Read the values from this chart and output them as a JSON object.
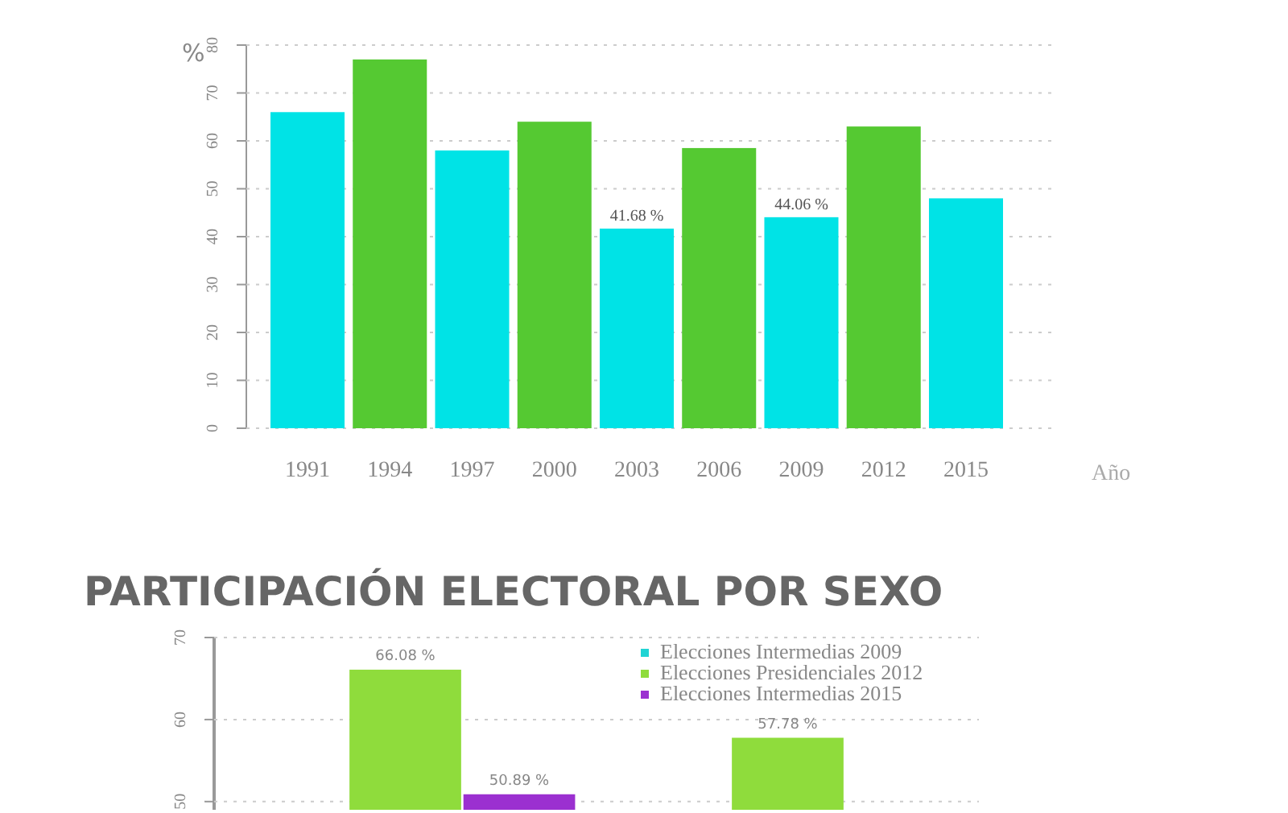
{
  "chart_data": [
    {
      "type": "bar",
      "ylabel": "%",
      "xlabel": "Año",
      "categories": [
        "1991",
        "1994",
        "1997",
        "2000",
        "2003",
        "2006",
        "2009",
        "2012",
        "2015"
      ],
      "values": [
        66,
        77,
        58,
        64,
        41.68,
        58.5,
        44.06,
        63,
        48
      ],
      "colors": [
        "#00e3e6",
        "#55c932",
        "#00e3e6",
        "#55c932",
        "#00e3e6",
        "#55c932",
        "#00e3e6",
        "#55c932",
        "#00e3e6"
      ],
      "value_labels": [
        null,
        null,
        null,
        null,
        "41.68 %",
        null,
        "44.06 %",
        null,
        null
      ],
      "ylim": [
        0,
        80
      ],
      "yticks": [
        0,
        10,
        20,
        30,
        40,
        50,
        60,
        70,
        80
      ],
      "grid": "y"
    },
    {
      "type": "bar",
      "title": "PARTICIPACIÓN ELECTORAL POR SEXO",
      "categories": [
        null,
        null
      ],
      "series": [
        {
          "name": "Elecciones Intermedias 2009",
          "color": "#20d4d4",
          "values": [
            null,
            null
          ],
          "value_labels": [
            null,
            null
          ]
        },
        {
          "name": "Elecciones Presidenciales 2012",
          "color": "#8fdc3c",
          "values": [
            66.08,
            57.78
          ],
          "value_labels": [
            "66.08 %",
            "57.78 %"
          ]
        },
        {
          "name": "Elecciones Intermedias 2015",
          "color": "#9b30d0",
          "values": [
            50.89,
            null
          ],
          "value_labels": [
            "50.89 %",
            null
          ]
        }
      ],
      "ylim": [
        49,
        70
      ],
      "yticks": [
        50,
        60,
        70
      ],
      "grid": "y",
      "legend": "top right"
    }
  ]
}
